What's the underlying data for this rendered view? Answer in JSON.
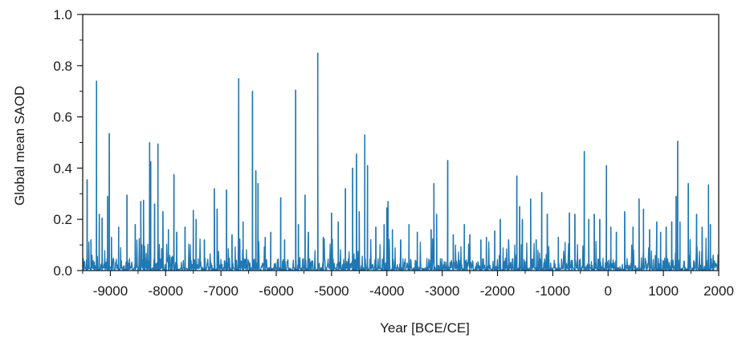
{
  "chart_data": {
    "type": "line",
    "title": "",
    "xlabel": "Year  [BCE/CE]",
    "ylabel": "Global mean SAOD",
    "xlim": [
      -9500,
      2000
    ],
    "ylim": [
      0.0,
      1.0
    ],
    "x_ticks": [
      -9000,
      -8000,
      -7000,
      -6000,
      -5000,
      -4000,
      -3000,
      -2000,
      -1000,
      0,
      1000,
      2000
    ],
    "x_tick_labels": [
      "-9000",
      "-8000",
      "-7000",
      "-6000",
      "-5000",
      "-4000",
      "-3000",
      "-2000",
      "-1000",
      "0",
      "1000",
      "2000"
    ],
    "y_ticks": [
      0.0,
      0.2,
      0.4,
      0.6,
      0.8,
      1.0
    ],
    "y_tick_labels": [
      "0.0",
      "0.2",
      "0.4",
      "0.6",
      "0.8",
      "1.0"
    ],
    "grid": false,
    "line_color": "#1f78b4",
    "baseline_noise_max": 0.08,
    "peaks": [
      [
        -9420,
        0.355
      ],
      [
        -9350,
        0.12
      ],
      [
        -9250,
        0.74
      ],
      [
        -9200,
        0.22
      ],
      [
        -9150,
        0.205
      ],
      [
        -9050,
        0.29
      ],
      [
        -9020,
        0.535
      ],
      [
        -8980,
        0.13
      ],
      [
        -8850,
        0.17
      ],
      [
        -8700,
        0.295
      ],
      [
        -8550,
        0.18
      ],
      [
        -8450,
        0.27
      ],
      [
        -8400,
        0.275
      ],
      [
        -8290,
        0.5
      ],
      [
        -8270,
        0.425
      ],
      [
        -8200,
        0.26
      ],
      [
        -8140,
        0.495
      ],
      [
        -8050,
        0.23
      ],
      [
        -7950,
        0.16
      ],
      [
        -7850,
        0.375
      ],
      [
        -7800,
        0.15
      ],
      [
        -7650,
        0.17
      ],
      [
        -7500,
        0.235
      ],
      [
        -7450,
        0.2
      ],
      [
        -7300,
        0.12
      ],
      [
        -7120,
        0.32
      ],
      [
        -7070,
        0.24
      ],
      [
        -6900,
        0.315
      ],
      [
        -6800,
        0.14
      ],
      [
        -6680,
        0.75
      ],
      [
        -6600,
        0.19
      ],
      [
        -6430,
        0.7
      ],
      [
        -6370,
        0.39
      ],
      [
        -6330,
        0.34
      ],
      [
        -6200,
        0.13
      ],
      [
        -6100,
        0.15
      ],
      [
        -5920,
        0.285
      ],
      [
        -5850,
        0.12
      ],
      [
        -5650,
        0.705
      ],
      [
        -5600,
        0.18
      ],
      [
        -5480,
        0.295
      ],
      [
        -5420,
        0.15
      ],
      [
        -5250,
        0.85
      ],
      [
        -5150,
        0.13
      ],
      [
        -5000,
        0.225
      ],
      [
        -4880,
        0.19
      ],
      [
        -4750,
        0.32
      ],
      [
        -4620,
        0.4
      ],
      [
        -4550,
        0.455
      ],
      [
        -4500,
        0.23
      ],
      [
        -4400,
        0.53
      ],
      [
        -4350,
        0.41
      ],
      [
        -4200,
        0.17
      ],
      [
        -4050,
        0.18
      ],
      [
        -4000,
        0.245
      ],
      [
        -3980,
        0.27
      ],
      [
        -3900,
        0.16
      ],
      [
        -3750,
        0.12
      ],
      [
        -3600,
        0.18
      ],
      [
        -3450,
        0.15
      ],
      [
        -3200,
        0.16
      ],
      [
        -3150,
        0.34
      ],
      [
        -3100,
        0.22
      ],
      [
        -2900,
        0.43
      ],
      [
        -2800,
        0.14
      ],
      [
        -2600,
        0.18
      ],
      [
        -2500,
        0.14
      ],
      [
        -2300,
        0.12
      ],
      [
        -2200,
        0.13
      ],
      [
        -2050,
        0.155
      ],
      [
        -1950,
        0.2
      ],
      [
        -1800,
        0.12
      ],
      [
        -1650,
        0.37
      ],
      [
        -1600,
        0.25
      ],
      [
        -1550,
        0.2
      ],
      [
        -1400,
        0.28
      ],
      [
        -1300,
        0.12
      ],
      [
        -1200,
        0.305
      ],
      [
        -1100,
        0.22
      ],
      [
        -900,
        0.13
      ],
      [
        -700,
        0.225
      ],
      [
        -600,
        0.22
      ],
      [
        -430,
        0.465
      ],
      [
        -350,
        0.2
      ],
      [
        -250,
        0.22
      ],
      [
        -150,
        0.2
      ],
      [
        -30,
        0.41
      ],
      [
        50,
        0.17
      ],
      [
        150,
        0.15
      ],
      [
        300,
        0.23
      ],
      [
        450,
        0.17
      ],
      [
        560,
        0.28
      ],
      [
        640,
        0.24
      ],
      [
        750,
        0.16
      ],
      [
        880,
        0.19
      ],
      [
        950,
        0.15
      ],
      [
        1050,
        0.17
      ],
      [
        1150,
        0.19
      ],
      [
        1230,
        0.29
      ],
      [
        1258,
        0.505
      ],
      [
        1300,
        0.19
      ],
      [
        1450,
        0.34
      ],
      [
        1600,
        0.22
      ],
      [
        1700,
        0.17
      ],
      [
        1815,
        0.335
      ],
      [
        1850,
        0.18
      ],
      [
        1900,
        0.06
      ]
    ]
  }
}
